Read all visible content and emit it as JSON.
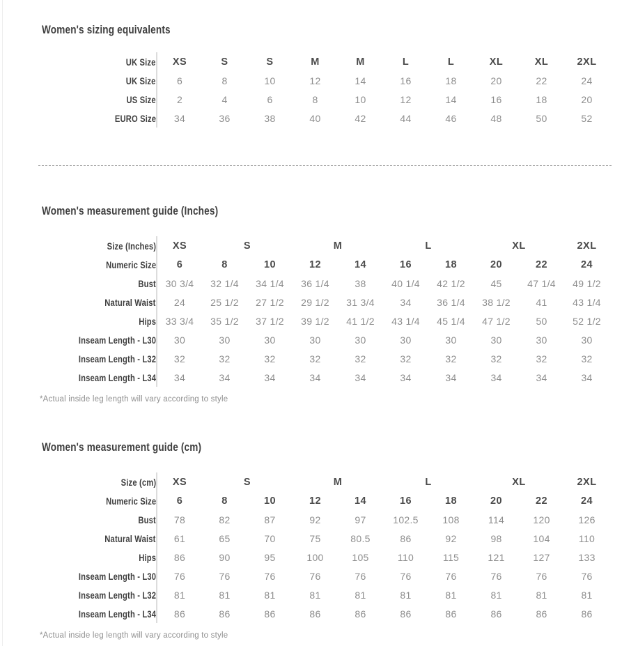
{
  "page": {
    "background": "#ffffff"
  },
  "colors": {
    "title_text": "#3f3f3f",
    "label_text": "#3f3f3f",
    "bold_value_text": "#4b4b4b",
    "value_text": "#8d8d8d",
    "column_divider": "#dcdcdc",
    "dotted_divider": "#adadad",
    "left_edge_line": "#ededed"
  },
  "sections": [
    {
      "title": "Women's sizing equivalents",
      "table": {
        "group_header": null,
        "rows": [
          {
            "label": "UK Size",
            "bold": true,
            "values": [
              "XS",
              "S",
              "S",
              "M",
              "M",
              "L",
              "L",
              "XL",
              "XL",
              "2XL"
            ]
          },
          {
            "label": "UK Size",
            "bold": false,
            "values": [
              "6",
              "8",
              "10",
              "12",
              "14",
              "16",
              "18",
              "20",
              "22",
              "24"
            ]
          },
          {
            "label": "US Size",
            "bold": false,
            "values": [
              "2",
              "4",
              "6",
              "8",
              "10",
              "12",
              "14",
              "16",
              "18",
              "20"
            ]
          },
          {
            "label": "EURO Size",
            "bold": false,
            "values": [
              "34",
              "36",
              "38",
              "40",
              "42",
              "44",
              "46",
              "48",
              "50",
              "52"
            ]
          }
        ]
      },
      "footnote": null
    },
    {
      "title": "Women's measurement guide (Inches)",
      "table": {
        "group_header": {
          "label": "Size (Inches)",
          "groups": [
            {
              "label": "XS",
              "span": 1
            },
            {
              "label": "S",
              "span": 2
            },
            {
              "label": "M",
              "span": 2
            },
            {
              "label": "L",
              "span": 2
            },
            {
              "label": "XL",
              "span": 2
            },
            {
              "label": "2XL",
              "span": 1
            }
          ]
        },
        "rows": [
          {
            "label": "Numeric Size",
            "bold": true,
            "values": [
              "6",
              "8",
              "10",
              "12",
              "14",
              "16",
              "18",
              "20",
              "22",
              "24"
            ]
          },
          {
            "label": "Bust",
            "bold": false,
            "values": [
              "30 3/4",
              "32 1/4",
              "34 1/4",
              "36 1/4",
              "38",
              "40 1/4",
              "42 1/2",
              "45",
              "47 1/4",
              "49 1/2"
            ]
          },
          {
            "label": "Natural Waist",
            "bold": false,
            "values": [
              "24",
              "25 1/2",
              "27 1/2",
              "29 1/2",
              "31 3/4",
              "34",
              "36 1/4",
              "38 1/2",
              "41",
              "43 1/4"
            ]
          },
          {
            "label": "Hips",
            "bold": false,
            "values": [
              "33 3/4",
              "35 1/2",
              "37 1/2",
              "39 1/2",
              "41 1/2",
              "43 1/4",
              "45 1/4",
              "47 1/2",
              "50",
              "52 1/2"
            ]
          },
          {
            "label": "Inseam Length - L30",
            "bold": false,
            "values": [
              "30",
              "30",
              "30",
              "30",
              "30",
              "30",
              "30",
              "30",
              "30",
              "30"
            ]
          },
          {
            "label": "Inseam Length - L32",
            "bold": false,
            "values": [
              "32",
              "32",
              "32",
              "32",
              "32",
              "32",
              "32",
              "32",
              "32",
              "32"
            ]
          },
          {
            "label": "Inseam Length - L34",
            "bold": false,
            "values": [
              "34",
              "34",
              "34",
              "34",
              "34",
              "34",
              "34",
              "34",
              "34",
              "34"
            ]
          }
        ]
      },
      "footnote": "*Actual inside leg length will vary according to style"
    },
    {
      "title": "Women's measurement guide (cm)",
      "table": {
        "group_header": {
          "label": "Size (cm)",
          "groups": [
            {
              "label": "XS",
              "span": 1
            },
            {
              "label": "S",
              "span": 2
            },
            {
              "label": "M",
              "span": 2
            },
            {
              "label": "L",
              "span": 2
            },
            {
              "label": "XL",
              "span": 2
            },
            {
              "label": "2XL",
              "span": 1
            }
          ]
        },
        "rows": [
          {
            "label": "Numeric Size",
            "bold": true,
            "values": [
              "6",
              "8",
              "10",
              "12",
              "14",
              "16",
              "18",
              "20",
              "22",
              "24"
            ]
          },
          {
            "label": "Bust",
            "bold": false,
            "values": [
              "78",
              "82",
              "87",
              "92",
              "97",
              "102.5",
              "108",
              "114",
              "120",
              "126"
            ]
          },
          {
            "label": "Natural Waist",
            "bold": false,
            "values": [
              "61",
              "65",
              "70",
              "75",
              "80.5",
              "86",
              "92",
              "98",
              "104",
              "110"
            ]
          },
          {
            "label": "Hips",
            "bold": false,
            "values": [
              "86",
              "90",
              "95",
              "100",
              "105",
              "110",
              "115",
              "121",
              "127",
              "133"
            ]
          },
          {
            "label": "Inseam Length - L30",
            "bold": false,
            "values": [
              "76",
              "76",
              "76",
              "76",
              "76",
              "76",
              "76",
              "76",
              "76",
              "76"
            ]
          },
          {
            "label": "Inseam Length - L32",
            "bold": false,
            "values": [
              "81",
              "81",
              "81",
              "81",
              "81",
              "81",
              "81",
              "81",
              "81",
              "81"
            ]
          },
          {
            "label": "Inseam Length - L34",
            "bold": false,
            "values": [
              "86",
              "86",
              "86",
              "86",
              "86",
              "86",
              "86",
              "86",
              "86",
              "86"
            ]
          }
        ]
      },
      "footnote": "*Actual inside leg length will vary according to style"
    }
  ]
}
